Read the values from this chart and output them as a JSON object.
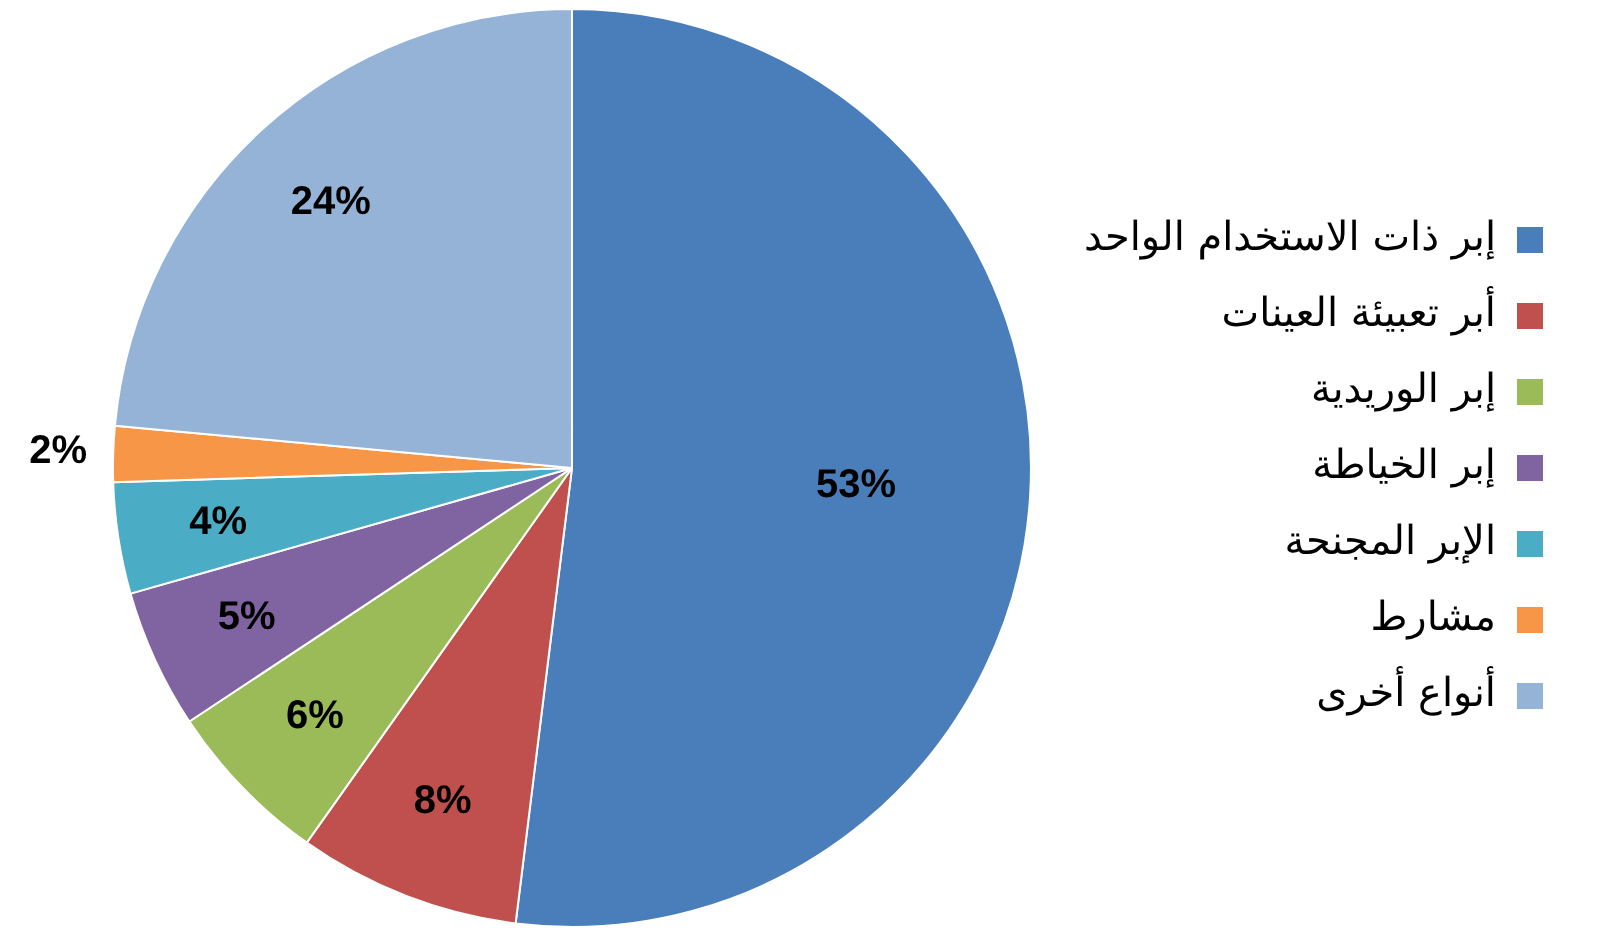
{
  "chart_data": {
    "type": "pie",
    "categories": [
      "إبر ذات الاستخدام الواحد",
      "أبر تعبيئة العينات",
      "إبر الوريدية",
      "إبر الخياطة",
      "الإبر المجنحة",
      "مشارط",
      "أنواع أخرى"
    ],
    "values": [
      53,
      8,
      6,
      5,
      4,
      2,
      24
    ],
    "colors": [
      "#4a7ebb",
      "#c0504d",
      "#9bbb59",
      "#8064a2",
      "#4bacc6",
      "#f79646",
      "#95b3d7"
    ],
    "value_labels": [
      "53%",
      "8%",
      "6%",
      "5%",
      "4%",
      "2%",
      "24%"
    ],
    "legend": "right"
  }
}
